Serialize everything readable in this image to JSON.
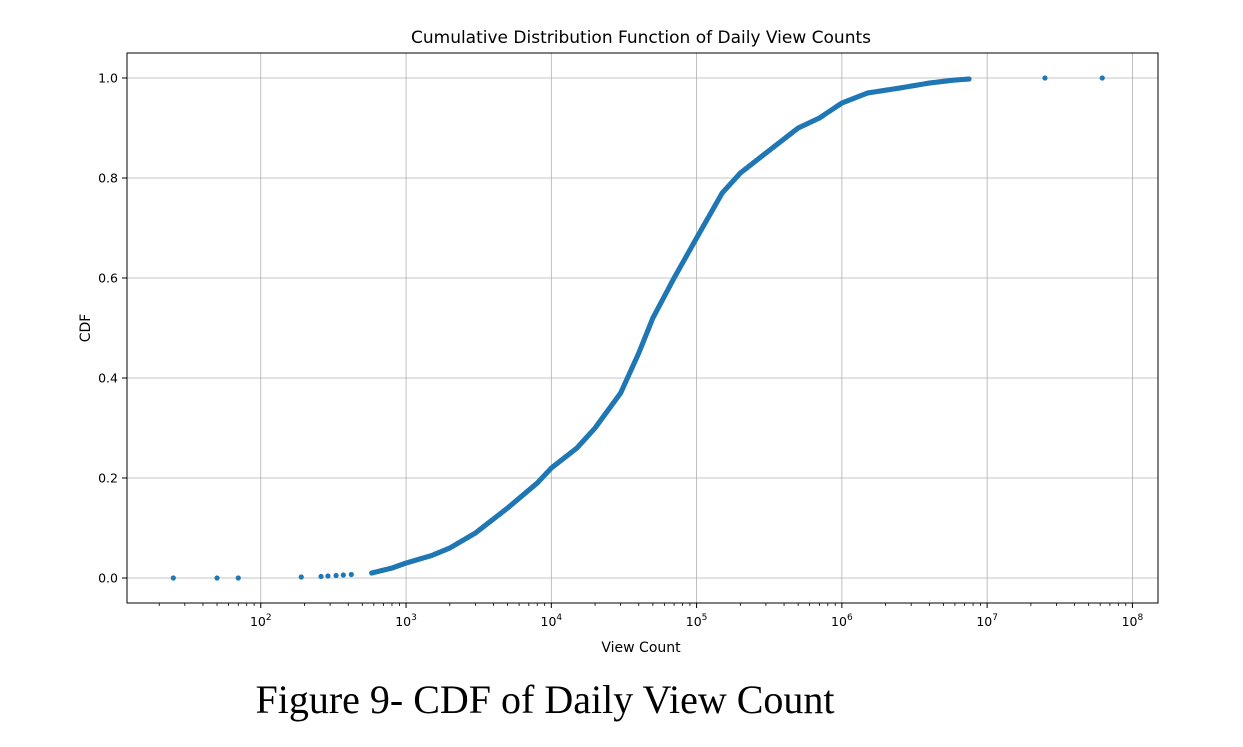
{
  "chart_data": {
    "type": "scatter",
    "title": "Cumulative Distribution Function of Daily View Counts",
    "xlabel": "View Count",
    "ylabel": "CDF",
    "xscale": "log",
    "xlim": [
      12,
      150000000
    ],
    "ylim": [
      -0.05,
      1.05
    ],
    "x_ticks": [
      {
        "value": 100,
        "base": "10",
        "exp": "2"
      },
      {
        "value": 1000,
        "base": "10",
        "exp": "3"
      },
      {
        "value": 10000,
        "base": "10",
        "exp": "4"
      },
      {
        "value": 100000,
        "base": "10",
        "exp": "5"
      },
      {
        "value": 1000000,
        "base": "10",
        "exp": "6"
      },
      {
        "value": 10000000,
        "base": "10",
        "exp": "7"
      },
      {
        "value": 100000000,
        "base": "10",
        "exp": "8"
      }
    ],
    "y_ticks": [
      "0.0",
      "0.2",
      "0.4",
      "0.6",
      "0.8",
      "1.0"
    ],
    "y_tick_values": [
      0,
      0.2,
      0.4,
      0.6,
      0.8,
      1.0
    ],
    "grid": true,
    "marker_color": "#1f77b4",
    "isolated_points": [
      {
        "x": 25,
        "y": 0.0
      },
      {
        "x": 50,
        "y": 0.0
      },
      {
        "x": 70,
        "y": 0.0
      },
      {
        "x": 190,
        "y": 0.002
      },
      {
        "x": 260,
        "y": 0.003
      },
      {
        "x": 290,
        "y": 0.004
      },
      {
        "x": 330,
        "y": 0.005
      },
      {
        "x": 370,
        "y": 0.006
      },
      {
        "x": 420,
        "y": 0.007
      },
      {
        "x": 25000000,
        "y": 1.0
      },
      {
        "x": 62000000,
        "y": 1.0
      }
    ],
    "cdf_curve_points": [
      {
        "x": 580,
        "y": 0.01
      },
      {
        "x": 800,
        "y": 0.02
      },
      {
        "x": 1000,
        "y": 0.03
      },
      {
        "x": 1500,
        "y": 0.045
      },
      {
        "x": 2000,
        "y": 0.06
      },
      {
        "x": 3000,
        "y": 0.09
      },
      {
        "x": 5000,
        "y": 0.14
      },
      {
        "x": 8000,
        "y": 0.19
      },
      {
        "x": 10000,
        "y": 0.22
      },
      {
        "x": 15000,
        "y": 0.26
      },
      {
        "x": 20000,
        "y": 0.3
      },
      {
        "x": 30000,
        "y": 0.37
      },
      {
        "x": 40000,
        "y": 0.45
      },
      {
        "x": 50000,
        "y": 0.52
      },
      {
        "x": 70000,
        "y": 0.6
      },
      {
        "x": 100000,
        "y": 0.68
      },
      {
        "x": 150000,
        "y": 0.77
      },
      {
        "x": 200000,
        "y": 0.81
      },
      {
        "x": 300000,
        "y": 0.85
      },
      {
        "x": 500000,
        "y": 0.9
      },
      {
        "x": 700000,
        "y": 0.92
      },
      {
        "x": 1000000,
        "y": 0.95
      },
      {
        "x": 1500000,
        "y": 0.97
      },
      {
        "x": 2500000,
        "y": 0.98
      },
      {
        "x": 4000000,
        "y": 0.99
      },
      {
        "x": 6000000,
        "y": 0.996
      },
      {
        "x": 7500000,
        "y": 0.998
      }
    ]
  },
  "caption": "Figure 9- CDF of Daily View Count"
}
